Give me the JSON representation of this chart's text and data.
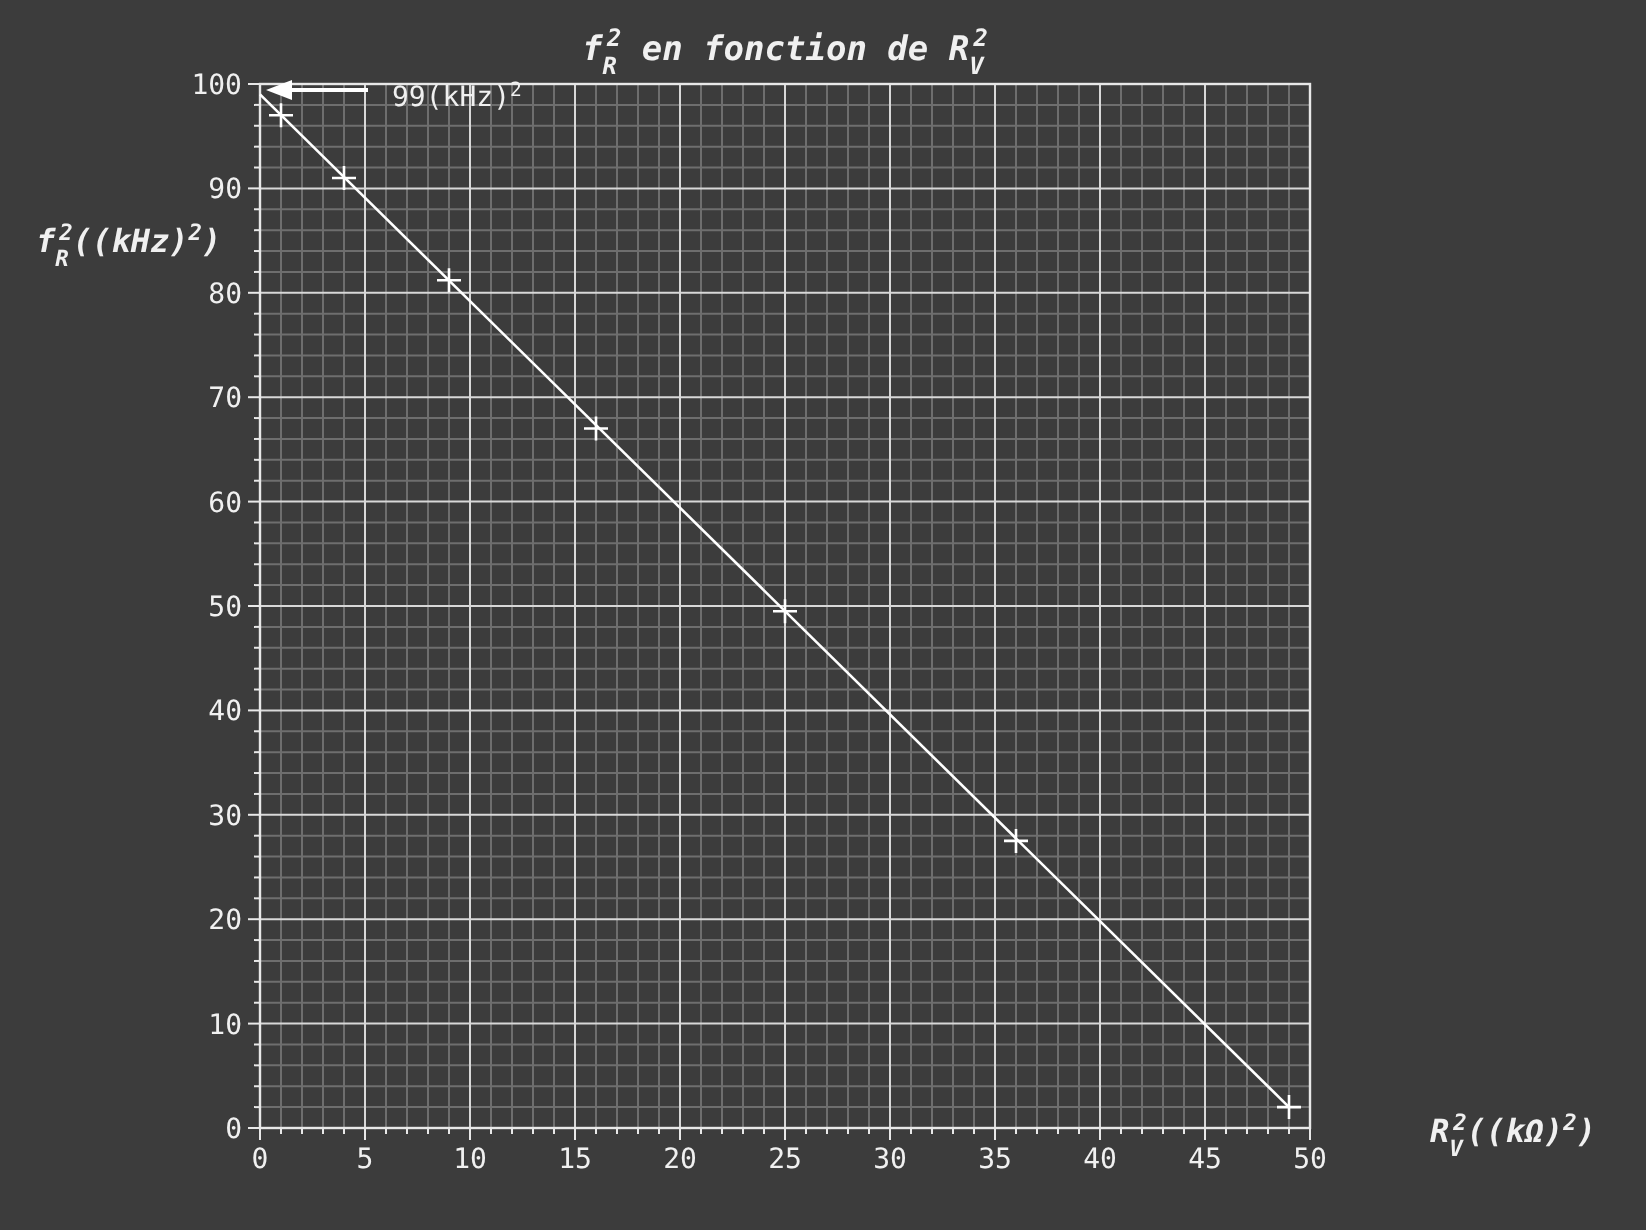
{
  "chart_data": {
    "type": "scatter",
    "title": "f$_{R}$$^{2}$ en fonction de R$_{V}$$^{2}$",
    "xlabel": "R$_{V}$$^{2}$((kΩ)$^{2}$)",
    "ylabel": "f$_{R}$$^{2}$((kHz)$^{2}$)",
    "xlim": [
      0,
      50
    ],
    "xticks": [
      0,
      5,
      10,
      15,
      20,
      25,
      30,
      35,
      40,
      45,
      50
    ],
    "ylim": [
      0,
      100
    ],
    "yticks": [
      0,
      10,
      20,
      30,
      40,
      50,
      60,
      70,
      80,
      90,
      100
    ],
    "grid": true,
    "series": [
      {
        "type": "line",
        "color": "#ffffff",
        "marker": "none",
        "x": [
          0,
          49
        ],
        "values": [
          99,
          2
        ]
      },
      {
        "color": "#ffffff",
        "marker": "cross",
        "x": [
          1,
          4,
          9,
          16,
          25,
          36,
          49
        ],
        "values": [
          97,
          91,
          81.2,
          67,
          49.5,
          27.5,
          2
        ]
      }
    ],
    "annotations": [
      "99(kHz)$^{2}$"
    ]
  }
}
